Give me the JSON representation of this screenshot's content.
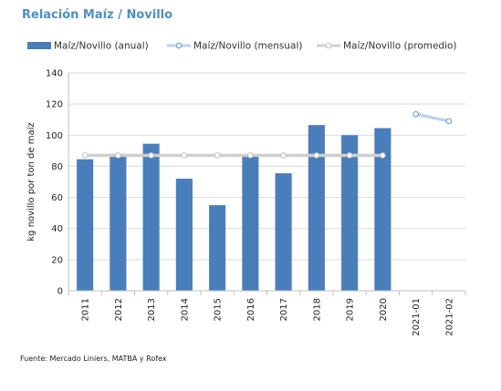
{
  "title": "Relación Maíz / Novillo",
  "source": "Fuente: Mercado Liniers, MATBA y Rofex",
  "chart_data": {
    "type": "bar",
    "ylabel": "kg novillo por ton de maíz",
    "ylim": [
      0,
      140
    ],
    "yticks": [
      0,
      20,
      40,
      60,
      80,
      100,
      120,
      140
    ],
    "grid": true,
    "legend_position": "top",
    "categories": [
      "2011",
      "2012",
      "2013",
      "2014",
      "2015",
      "2016",
      "2017",
      "2018",
      "2019",
      "2020",
      "2021-01",
      "2021-02"
    ],
    "series": [
      {
        "name": "Maíz/Novillo (anual)",
        "kind": "bar",
        "color": "#4a7ebb",
        "values": [
          84.5,
          88,
          94.5,
          72,
          55,
          87.5,
          75.5,
          106.5,
          100,
          104.5,
          null,
          null
        ]
      },
      {
        "name": "Maíz/Novillo (mensual)",
        "kind": "line",
        "color": "#bcd6ef",
        "values": [
          null,
          null,
          null,
          null,
          null,
          null,
          null,
          null,
          null,
          null,
          113.5,
          109
        ]
      },
      {
        "name": "Maíz/Novillo (promedio)",
        "kind": "line",
        "color": "#cfcfcf",
        "values": [
          87,
          87,
          87,
          87,
          87,
          87,
          87,
          87,
          87,
          87,
          null,
          null
        ]
      }
    ]
  }
}
